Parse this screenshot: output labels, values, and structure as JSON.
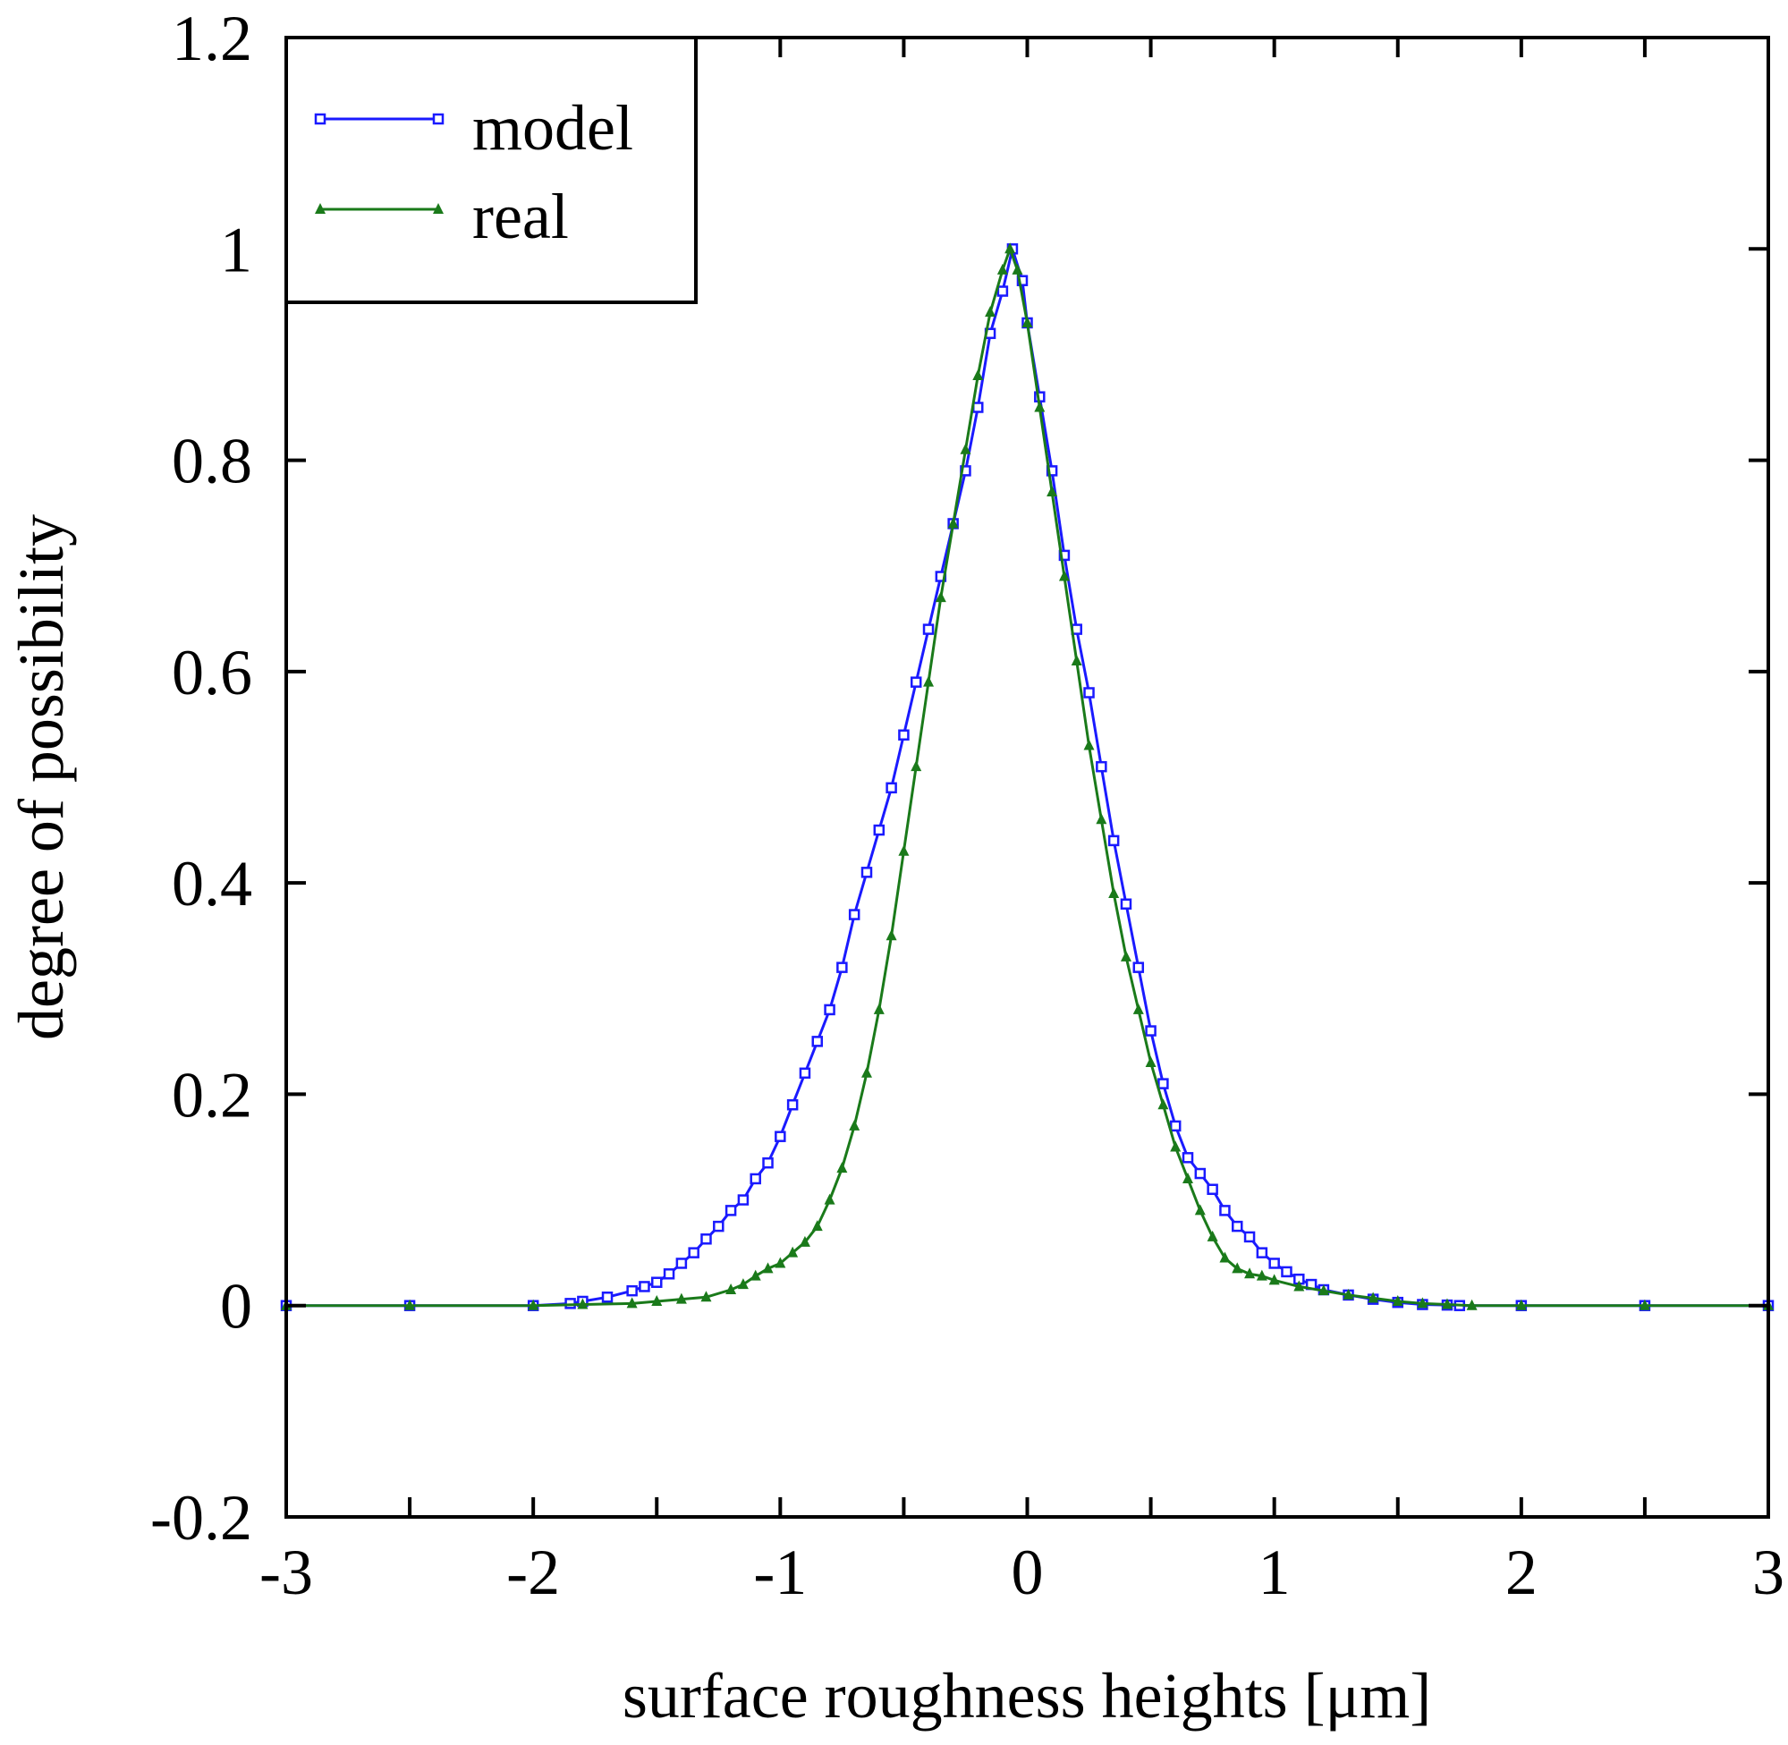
{
  "chart_data": {
    "type": "line",
    "title": "",
    "xlabel": "surface roughness heights [μm]",
    "ylabel": "degree of possibility",
    "xlim": [
      -3,
      3
    ],
    "ylim": [
      -0.2,
      1.2
    ],
    "xticks": [
      -3,
      -2,
      -1,
      0,
      1,
      2,
      3
    ],
    "xtick_labels": [
      "-3",
      "-2",
      "-1",
      "0",
      "1",
      "2",
      "3"
    ],
    "yticks": [
      -0.2,
      0,
      0.2,
      0.4,
      0.6,
      0.8,
      1,
      1.2
    ],
    "ytick_labels": [
      "-0.2",
      "0",
      "0.2",
      "0.4",
      "0.6",
      "0.8",
      "1",
      "1.2"
    ],
    "grid": false,
    "legend_position": "top-left",
    "series": [
      {
        "name": "model",
        "color": "#1a1aff",
        "marker": "square",
        "x": [
          -3.0,
          -2.5,
          -2.0,
          -1.85,
          -1.8,
          -1.7,
          -1.6,
          -1.55,
          -1.5,
          -1.45,
          -1.4,
          -1.35,
          -1.3,
          -1.25,
          -1.2,
          -1.15,
          -1.1,
          -1.05,
          -1.0,
          -0.95,
          -0.9,
          -0.85,
          -0.8,
          -0.75,
          -0.7,
          -0.65,
          -0.6,
          -0.55,
          -0.5,
          -0.45,
          -0.4,
          -0.35,
          -0.3,
          -0.25,
          -0.2,
          -0.15,
          -0.1,
          -0.06,
          -0.02,
          0.0,
          0.05,
          0.1,
          0.15,
          0.2,
          0.25,
          0.3,
          0.35,
          0.4,
          0.45,
          0.5,
          0.55,
          0.6,
          0.65,
          0.7,
          0.75,
          0.8,
          0.85,
          0.9,
          0.95,
          1.0,
          1.05,
          1.1,
          1.15,
          1.2,
          1.3,
          1.4,
          1.5,
          1.6,
          1.7,
          1.75,
          2.0,
          2.5,
          3.0
        ],
        "values": [
          0.0,
          0.0,
          0.0,
          0.002,
          0.004,
          0.008,
          0.014,
          0.018,
          0.022,
          0.03,
          0.04,
          0.05,
          0.063,
          0.075,
          0.09,
          0.1,
          0.12,
          0.135,
          0.16,
          0.19,
          0.22,
          0.25,
          0.28,
          0.32,
          0.37,
          0.41,
          0.45,
          0.49,
          0.54,
          0.59,
          0.64,
          0.69,
          0.74,
          0.79,
          0.85,
          0.92,
          0.96,
          1.0,
          0.97,
          0.93,
          0.86,
          0.79,
          0.71,
          0.64,
          0.58,
          0.51,
          0.44,
          0.38,
          0.32,
          0.26,
          0.21,
          0.17,
          0.14,
          0.125,
          0.11,
          0.09,
          0.075,
          0.065,
          0.05,
          0.04,
          0.032,
          0.025,
          0.02,
          0.015,
          0.01,
          0.006,
          0.003,
          0.001,
          0.0005,
          0.0,
          0.0,
          0.0,
          0.0
        ]
      },
      {
        "name": "real",
        "color": "#1a7a1a",
        "marker": "triangle",
        "x": [
          -3.0,
          -2.5,
          -2.0,
          -1.8,
          -1.6,
          -1.5,
          -1.4,
          -1.3,
          -1.2,
          -1.15,
          -1.1,
          -1.05,
          -1.0,
          -0.95,
          -0.9,
          -0.85,
          -0.8,
          -0.75,
          -0.7,
          -0.65,
          -0.6,
          -0.55,
          -0.5,
          -0.45,
          -0.4,
          -0.35,
          -0.3,
          -0.25,
          -0.2,
          -0.15,
          -0.1,
          -0.07,
          -0.04,
          0.0,
          0.05,
          0.1,
          0.15,
          0.2,
          0.25,
          0.3,
          0.35,
          0.4,
          0.45,
          0.5,
          0.55,
          0.6,
          0.65,
          0.7,
          0.75,
          0.8,
          0.85,
          0.9,
          0.95,
          1.0,
          1.1,
          1.2,
          1.3,
          1.4,
          1.5,
          1.6,
          1.7,
          1.8,
          2.0,
          2.5,
          3.0
        ],
        "values": [
          0.0,
          0.0,
          0.0,
          0.001,
          0.002,
          0.004,
          0.006,
          0.008,
          0.015,
          0.02,
          0.028,
          0.035,
          0.04,
          0.05,
          0.06,
          0.075,
          0.1,
          0.13,
          0.17,
          0.22,
          0.28,
          0.35,
          0.43,
          0.51,
          0.59,
          0.67,
          0.74,
          0.81,
          0.88,
          0.94,
          0.98,
          1.0,
          0.98,
          0.93,
          0.85,
          0.77,
          0.69,
          0.61,
          0.53,
          0.46,
          0.39,
          0.33,
          0.28,
          0.23,
          0.19,
          0.15,
          0.12,
          0.09,
          0.065,
          0.045,
          0.035,
          0.03,
          0.028,
          0.024,
          0.018,
          0.014,
          0.01,
          0.007,
          0.004,
          0.002,
          0.001,
          0.0,
          0.0,
          0.0,
          0.0
        ]
      }
    ]
  }
}
